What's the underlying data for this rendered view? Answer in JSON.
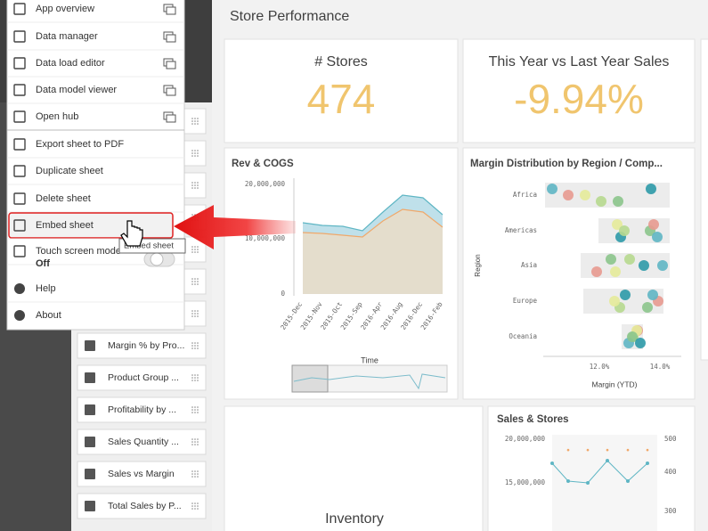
{
  "menu": {
    "items": [
      "App overview",
      "Data manager",
      "Data load editor",
      "Data model viewer",
      "Open hub",
      "Export sheet to PDF",
      "Duplicate sheet",
      "Delete sheet",
      "Embed sheet",
      "Touch screen mode",
      "Help",
      "About"
    ],
    "touch_state": "Off",
    "tooltip": "Embed sheet"
  },
  "sidebar": {
    "items": [
      "Margin % by Pro...",
      "Product Group ...",
      "Profitability by ...",
      "Sales Quantity ...",
      "Sales vs Margin",
      "Total Sales by P..."
    ]
  },
  "sheet": {
    "title": "Store Performance",
    "kpis": [
      {
        "label": "# Stores",
        "value": "474"
      },
      {
        "label": "This Year vs Last Year Sales",
        "value": "-9.94%"
      }
    ],
    "rev_cogs": {
      "title": "Rev & COGS",
      "yticks": [
        "20,000,000",
        "10,000,000",
        "0"
      ],
      "categories": [
        "2015-Dec",
        "2015-Nov",
        "2015-Oct",
        "2015-Sep",
        "2016-Apr",
        "2016-Aug",
        "2016-Dec",
        "2016-Feb"
      ],
      "x_label": "Time"
    },
    "margin": {
      "title": "Margin Distribution by Region / Comp...",
      "regions": [
        "Africa",
        "Americas",
        "Asia",
        "Europe",
        "Oceania"
      ],
      "xticks": [
        "12.0%",
        "14.0%"
      ],
      "x_label": "Margin (YTD)",
      "y_label": "Region"
    },
    "inventory": {
      "title": "Inventory"
    },
    "sales_stores": {
      "title": "Sales & Stores",
      "yticks": [
        "20,000,000",
        "15,000,000"
      ],
      "y2ticks": [
        "500",
        "400",
        "300"
      ]
    }
  }
}
